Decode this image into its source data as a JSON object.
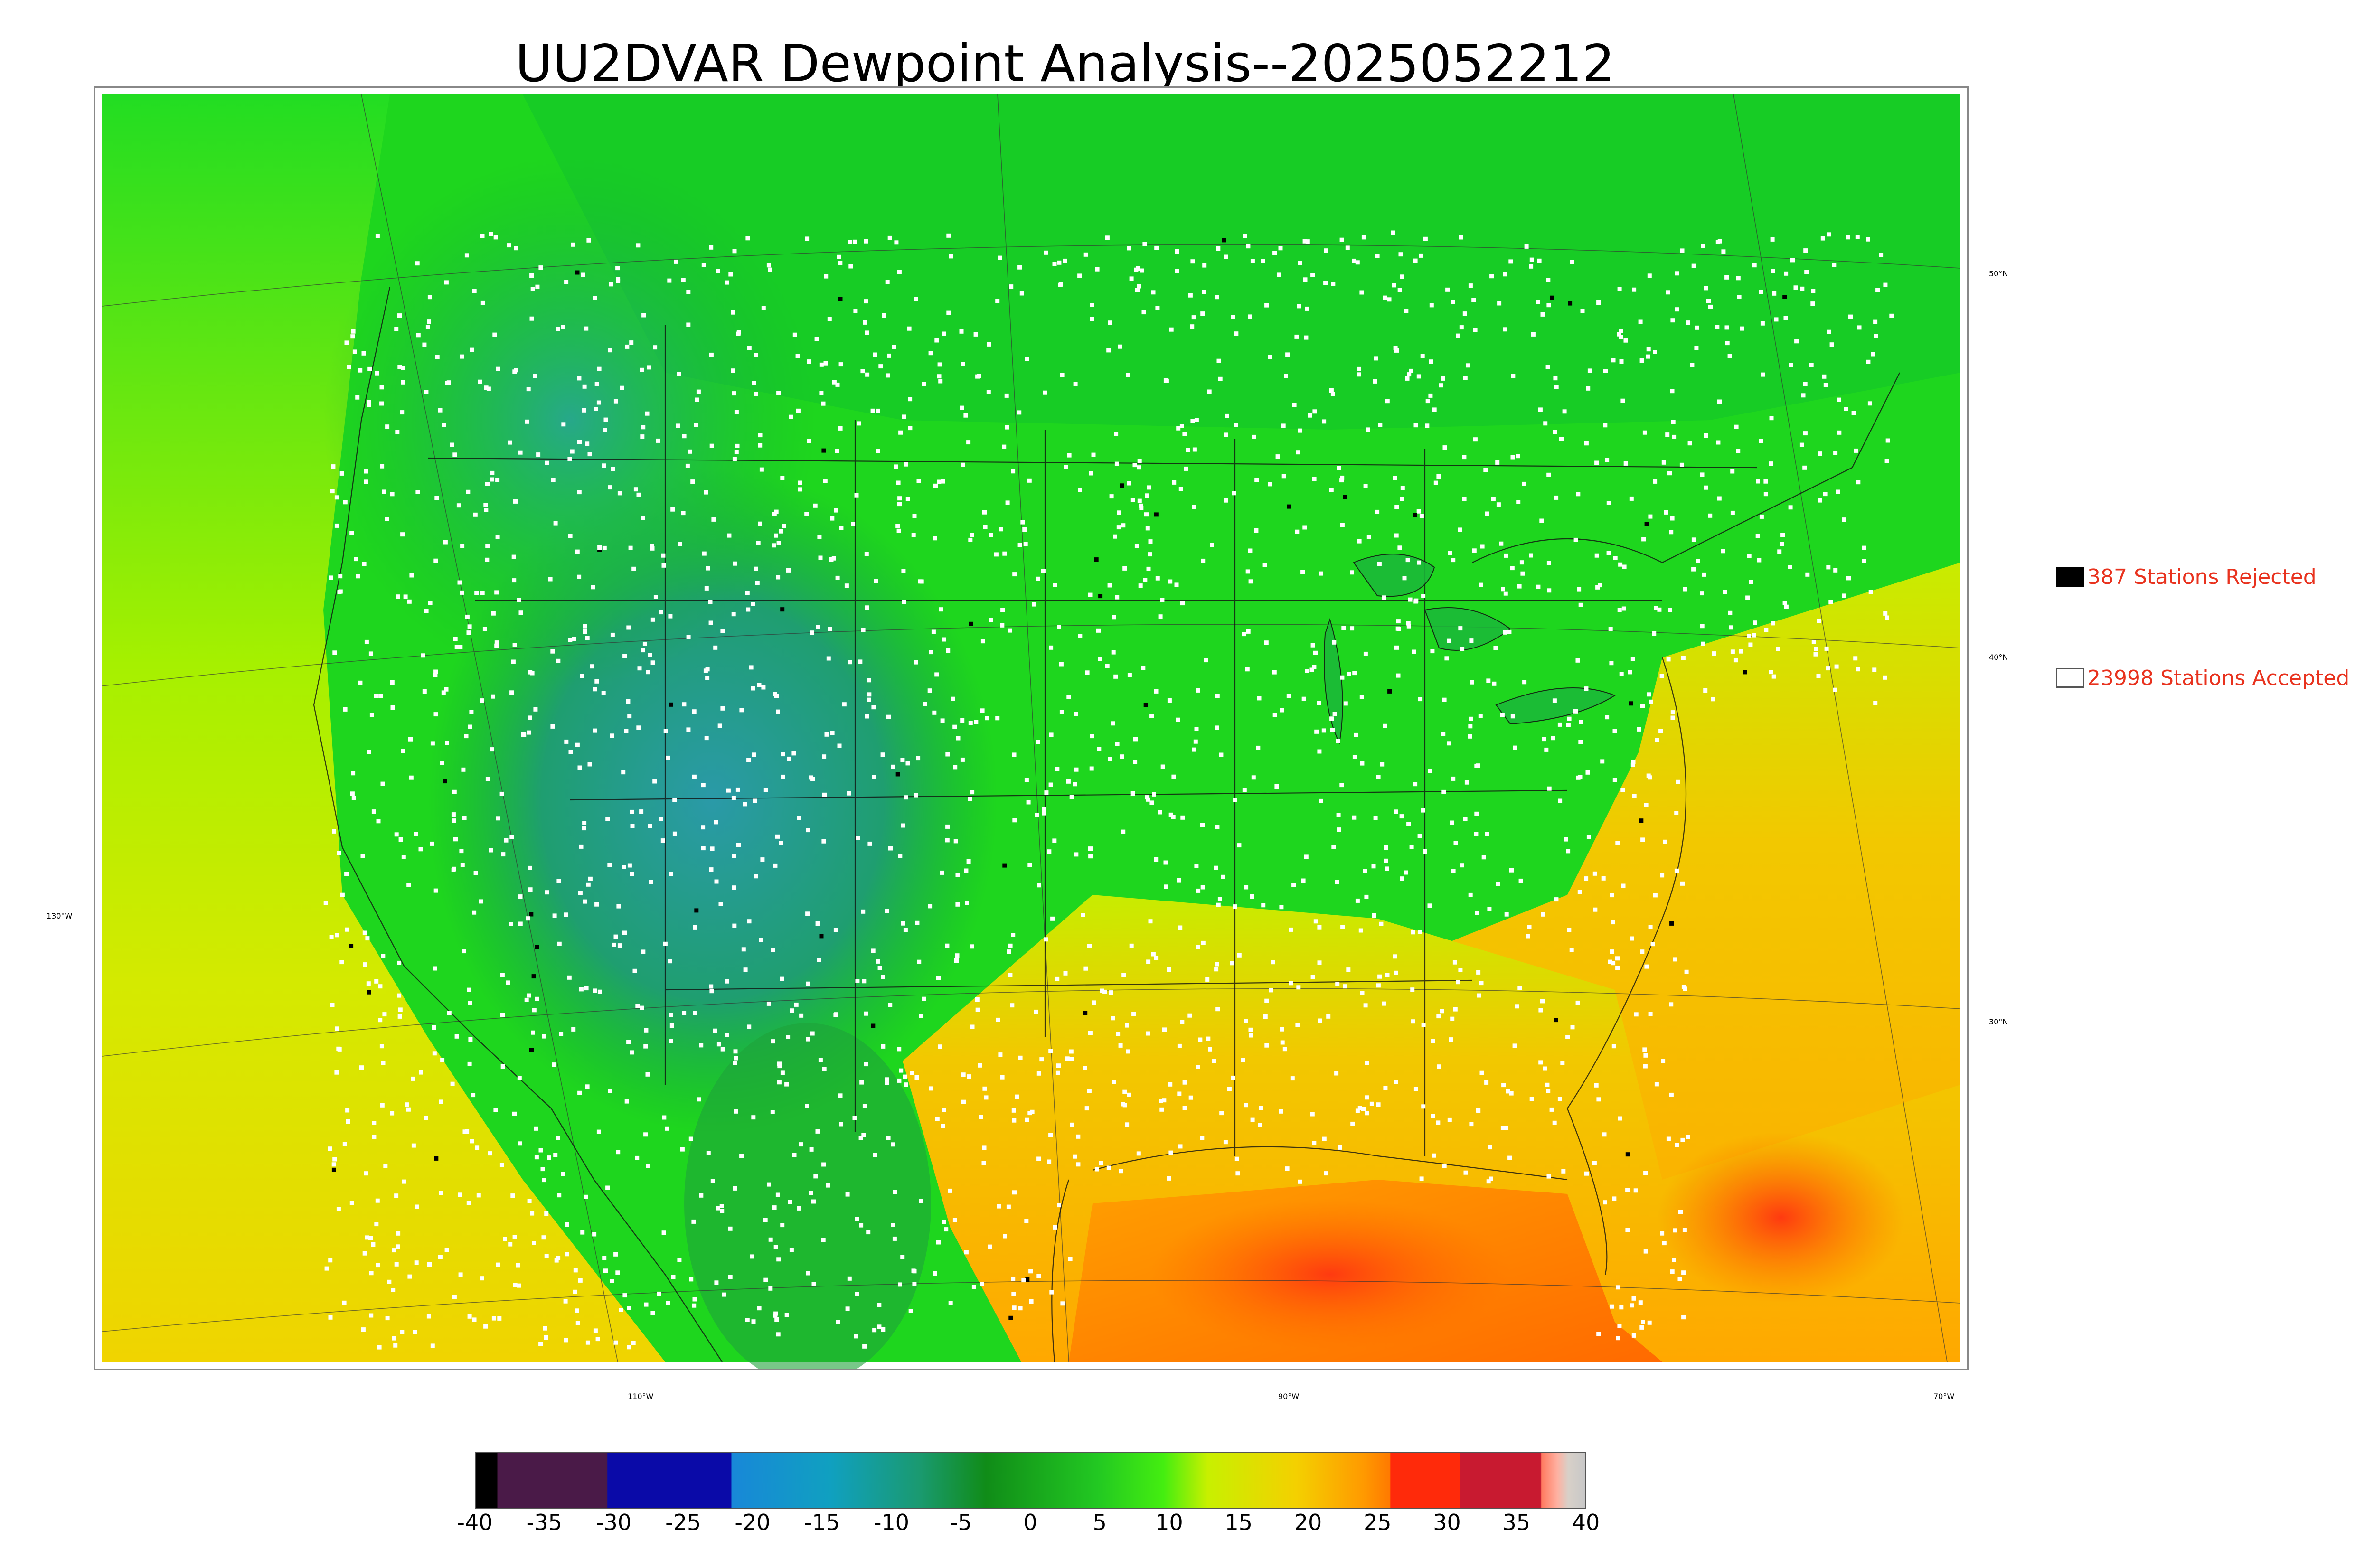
{
  "title": "UU2DVAR Dewpoint Analysis--2025052212",
  "map": {
    "latitude_labels": [
      "50°N",
      "40°N",
      "30°N"
    ],
    "longitude_labels": [
      "130°W",
      "110°W",
      "90°W",
      "70°W"
    ]
  },
  "legend": {
    "rejected": {
      "label": "387 Stations Rejected",
      "color": "#000000"
    },
    "accepted": {
      "label": "23998 Stations Accepted",
      "color": "#ffffff"
    }
  },
  "colorbar": {
    "min": -40,
    "max": 40,
    "tick_labels": [
      "-40",
      "-35",
      "-30",
      "-25",
      "-20",
      "-15",
      "-10",
      "-5",
      "0",
      "5",
      "10",
      "15",
      "20",
      "25",
      "30",
      "35",
      "40"
    ]
  },
  "colors": {
    "legend_text": "#e8321e"
  }
}
